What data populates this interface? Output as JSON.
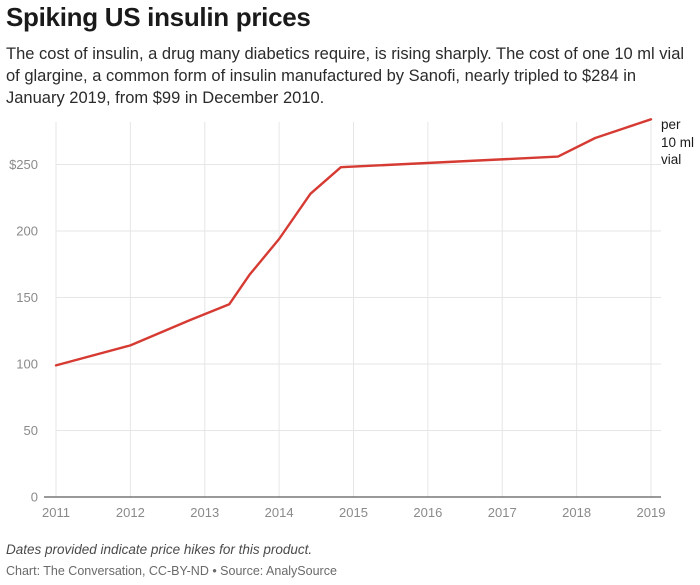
{
  "title": "Spiking US insulin prices",
  "subtitle": "The cost of insulin, a drug many diabetics require, is rising sharply. The cost of one 10 ml vial of glargine, a common form of insulin manufactured by Sanofi, nearly tripled to $284 in January 2019, from $99 in December 2010.",
  "footnote": "Dates provided indicate price hikes for this product.",
  "source": "Chart: The Conversation, CC-BY-ND • Source: AnalySource",
  "colors": {
    "line": "#d63b33",
    "grid": "#e6e6e6",
    "axis": "#333333"
  },
  "chart_data": {
    "type": "line",
    "title": "Spiking US insulin prices",
    "xlabel": "",
    "ylabel": "",
    "unit_label": "per 10 ml vial",
    "xlim": [
      2011,
      2019
    ],
    "ylim": [
      0,
      284
    ],
    "x_ticks": [
      "2011",
      "2012",
      "2013",
      "2014",
      "2015",
      "2016",
      "2017",
      "2018",
      "2019"
    ],
    "y_ticks": [
      {
        "value": 0,
        "label": "0"
      },
      {
        "value": 50,
        "label": "50"
      },
      {
        "value": 100,
        "label": "100"
      },
      {
        "value": 150,
        "label": "150"
      },
      {
        "value": 200,
        "label": "200"
      },
      {
        "value": 250,
        "label": "$250"
      }
    ],
    "grid": true,
    "series": [
      {
        "x": [
          2011.0,
          2012.0,
          2012.8,
          2013.33,
          2013.6,
          2014.0,
          2014.42,
          2014.83,
          2017.75,
          2018.25,
          2019.0
        ],
        "values": [
          99,
          114,
          133,
          145,
          167,
          194,
          228,
          248,
          256,
          270,
          284
        ]
      }
    ]
  }
}
